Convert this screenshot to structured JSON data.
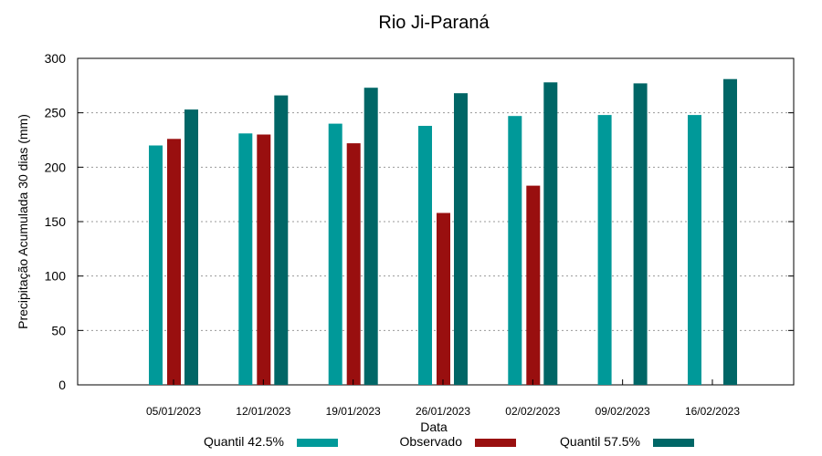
{
  "chart_data": {
    "type": "bar",
    "title": "Rio Ji-Paraná",
    "xlabel": "Data",
    "ylabel": "Precipitação Acumulada 30 dias (mm)",
    "ylim": [
      0,
      300
    ],
    "yticks": [
      0,
      50,
      100,
      150,
      200,
      250,
      300
    ],
    "grid": true,
    "legend_position": "bottom",
    "categories": [
      "05/01/2023",
      "12/01/2023",
      "19/01/2023",
      "26/01/2023",
      "02/02/2023",
      "09/02/2023",
      "16/02/2023"
    ],
    "series": [
      {
        "name": "Quantil 42.5%",
        "color": "#009999",
        "values": [
          220,
          231,
          240,
          238,
          247,
          248,
          248
        ]
      },
      {
        "name": "Observado",
        "color": "#990f0f",
        "values": [
          226,
          230,
          222,
          158,
          183,
          null,
          null
        ]
      },
      {
        "name": "Quantil 57.5%",
        "color": "#006666",
        "values": [
          253,
          266,
          273,
          268,
          278,
          277,
          281
        ]
      }
    ]
  }
}
